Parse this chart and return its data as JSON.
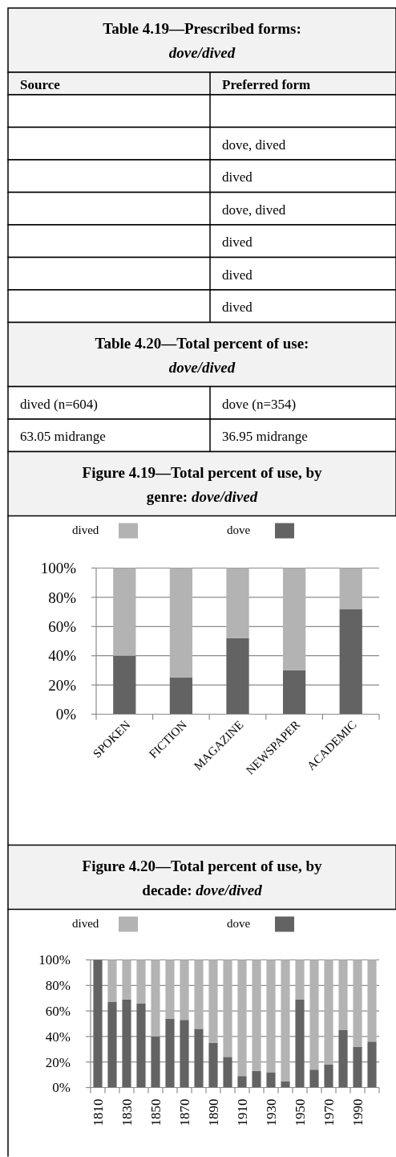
{
  "chart_data": [
    {
      "type": "other",
      "title": "Table 4.19—Prescribed forms: dove/dived",
      "categories": [
        "Source",
        "Preferred form"
      ],
      "cell_labels": [
        [
          null,
          null
        ],
        [
          null,
          "dove, dived"
        ],
        [
          null,
          "dived"
        ],
        [
          null,
          "dove, dived"
        ],
        [
          null,
          "dived"
        ],
        [
          null,
          "dived"
        ],
        [
          null,
          "dived"
        ]
      ]
    },
    {
      "type": "other",
      "title": "Table 4.20—Total percent of use: dove/dived",
      "cell_labels": [
        [
          "dived (n=604)",
          "dove (n=354)"
        ],
        [
          "63.05 midrange",
          "36.95 midrange"
        ]
      ]
    },
    {
      "type": "bar",
      "stacked": true,
      "title": "Figure 4.19—Total percent of use, by genre: dove/dived",
      "categories": [
        "SPOKEN",
        "FICTION",
        "MAGAZINE",
        "NEWSPAPER",
        "ACADEMIC"
      ],
      "series": [
        {
          "name": "dove",
          "color": "#636363",
          "values": [
            40,
            25,
            52,
            30,
            72
          ]
        },
        {
          "name": "dived",
          "color": "#b3b3b3",
          "values": [
            60,
            75,
            48,
            70,
            28
          ]
        }
      ],
      "ylim": [
        0,
        100
      ],
      "yticks": [
        {
          "value": 0,
          "label": "0%"
        },
        {
          "value": 20,
          "label": "20%"
        },
        {
          "value": 40,
          "label": "40%"
        },
        {
          "value": 60,
          "label": "60%"
        },
        {
          "value": 80,
          "label": "80%"
        },
        {
          "value": 100,
          "label": "100%"
        }
      ],
      "grid": "y",
      "legend": "top"
    },
    {
      "type": "bar",
      "stacked": true,
      "title": "Figure 4.20—Total percent of use, by decade: dove/dived",
      "categories": [
        "1810",
        null,
        "1830",
        null,
        "1850",
        null,
        "1870",
        null,
        "1890",
        null,
        "1910",
        null,
        "1930",
        null,
        "1950",
        null,
        "1970",
        null,
        "1990",
        null
      ],
      "series": [
        {
          "name": "dove",
          "color": "#636363",
          "values": [
            100,
            67,
            69,
            66,
            40,
            54,
            53,
            46,
            35,
            24,
            9,
            13,
            12,
            5,
            69,
            14,
            18,
            45,
            32,
            36
          ]
        },
        {
          "name": "dived",
          "color": "#b3b3b3",
          "values": [
            0,
            33,
            31,
            34,
            60,
            46,
            47,
            54,
            65,
            76,
            91,
            87,
            88,
            95,
            31,
            86,
            82,
            55,
            68,
            64
          ]
        }
      ],
      "ylim": [
        0,
        100
      ],
      "yticks": [
        {
          "value": 0,
          "label": "0%"
        },
        {
          "value": 20,
          "label": "20%"
        },
        {
          "value": 40,
          "label": "40%"
        },
        {
          "value": 60,
          "label": "60%"
        },
        {
          "value": 80,
          "label": "80%"
        },
        {
          "value": 100,
          "label": "100%"
        }
      ],
      "grid": "y",
      "legend": "top"
    }
  ]
}
